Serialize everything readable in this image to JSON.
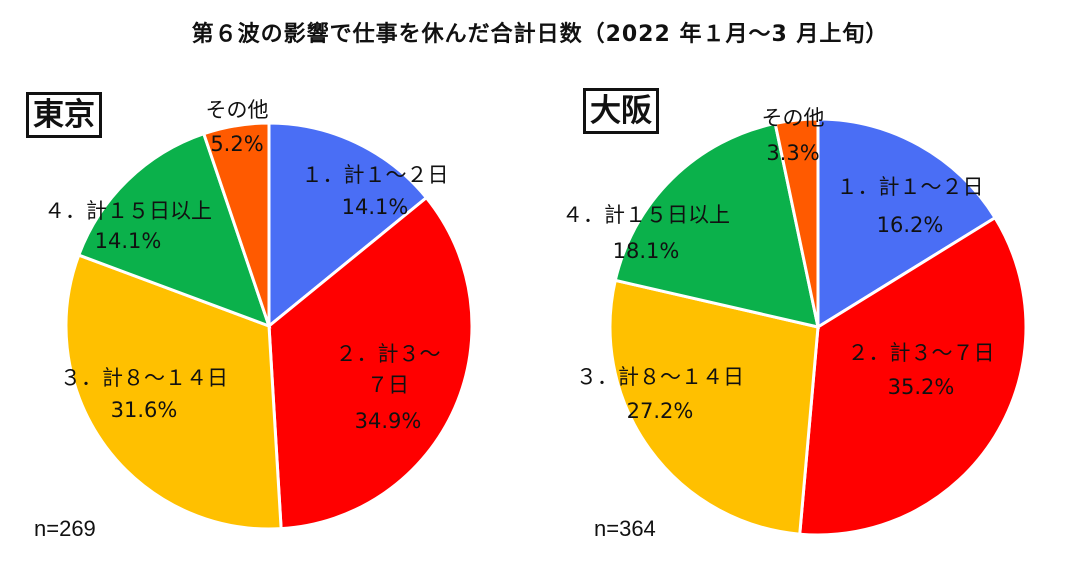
{
  "title": "第６波の影響で仕事を休んだ合計日数（2022 年１月～3 月上旬）",
  "chart_data": [
    {
      "type": "pie",
      "region": "東京",
      "n_label": "n=269",
      "slices": [
        {
          "label": "１．計１～２日",
          "pct_label": "14.1%",
          "value": 14.1,
          "color": "#4a6ef5"
        },
        {
          "label": "２．計３～７日",
          "pct_label": "34.9%",
          "value": 34.9,
          "color": "#ff0000"
        },
        {
          "label": "３．計８～１４日",
          "pct_label": "31.6%",
          "value": 31.6,
          "color": "#ffc000"
        },
        {
          "label": "４．計１５日以上",
          "pct_label": "14.1%",
          "value": 14.1,
          "color": "#0bb14b"
        },
        {
          "label": "その他",
          "pct_label": "5.2%",
          "value": 5.2,
          "color": "#ff5a00"
        }
      ]
    },
    {
      "type": "pie",
      "region": "大阪",
      "n_label": "n=364",
      "slices": [
        {
          "label": "１．計１～２日",
          "pct_label": "16.2%",
          "value": 16.2,
          "color": "#4a6ef5"
        },
        {
          "label": "２．計３～７日",
          "pct_label": "35.2%",
          "value": 35.2,
          "color": "#ff0000"
        },
        {
          "label": "３．計８～１４日",
          "pct_label": "27.2%",
          "value": 27.2,
          "color": "#ffc000"
        },
        {
          "label": "４．計１５日以上",
          "pct_label": "18.1%",
          "value": 18.1,
          "color": "#0bb14b"
        },
        {
          "label": "その他",
          "pct_label": "3.3%",
          "value": 3.3,
          "color": "#ff5a00"
        }
      ]
    }
  ]
}
